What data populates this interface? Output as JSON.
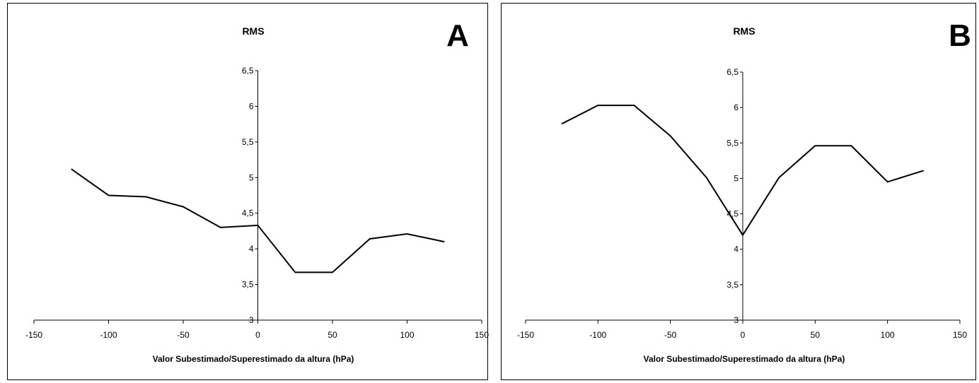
{
  "chart_data": [
    {
      "type": "line",
      "title": "RMS",
      "panel_letter": "A",
      "xlabel": "Valor Subestimado/Superestimado da altura (hPa)",
      "ylabel": "",
      "xlim": [
        -150,
        150
      ],
      "ylim": [
        3,
        6.5
      ],
      "x_ticks": [
        "-150",
        "-100",
        "-50",
        "0",
        "50",
        "100",
        "150"
      ],
      "y_ticks": [
        "3",
        "3,5",
        "4",
        "4,5",
        "5",
        "5,5",
        "6",
        "6,5"
      ],
      "grid": false,
      "series": [
        {
          "x": [
            -125,
            -100,
            -75,
            -50,
            -25,
            0,
            25,
            50,
            75,
            100,
            125
          ],
          "values": [
            5.12,
            4.75,
            4.73,
            4.59,
            4.3,
            4.33,
            3.67,
            3.67,
            4.14,
            4.21,
            4.1
          ]
        }
      ]
    },
    {
      "type": "line",
      "title": "RMS",
      "panel_letter": "B",
      "xlabel": "Valor Subestimado/Superestimado da altura (hPa)",
      "ylabel": "",
      "xlim": [
        -150,
        150
      ],
      "ylim": [
        3,
        6.5
      ],
      "x_ticks": [
        "-150",
        "-100",
        "-50",
        "0",
        "50",
        "100",
        "150"
      ],
      "y_ticks": [
        "3",
        "3,5",
        "4",
        "4,5",
        "5",
        "5,5",
        "6",
        "6,5"
      ],
      "grid": false,
      "series": [
        {
          "x": [
            -125,
            -100,
            -75,
            -50,
            -25,
            0,
            25,
            50,
            75,
            100,
            125
          ],
          "values": [
            5.77,
            6.03,
            6.03,
            5.6,
            5.01,
            4.2,
            5.01,
            5.46,
            5.46,
            4.95,
            5.11
          ]
        }
      ]
    }
  ]
}
